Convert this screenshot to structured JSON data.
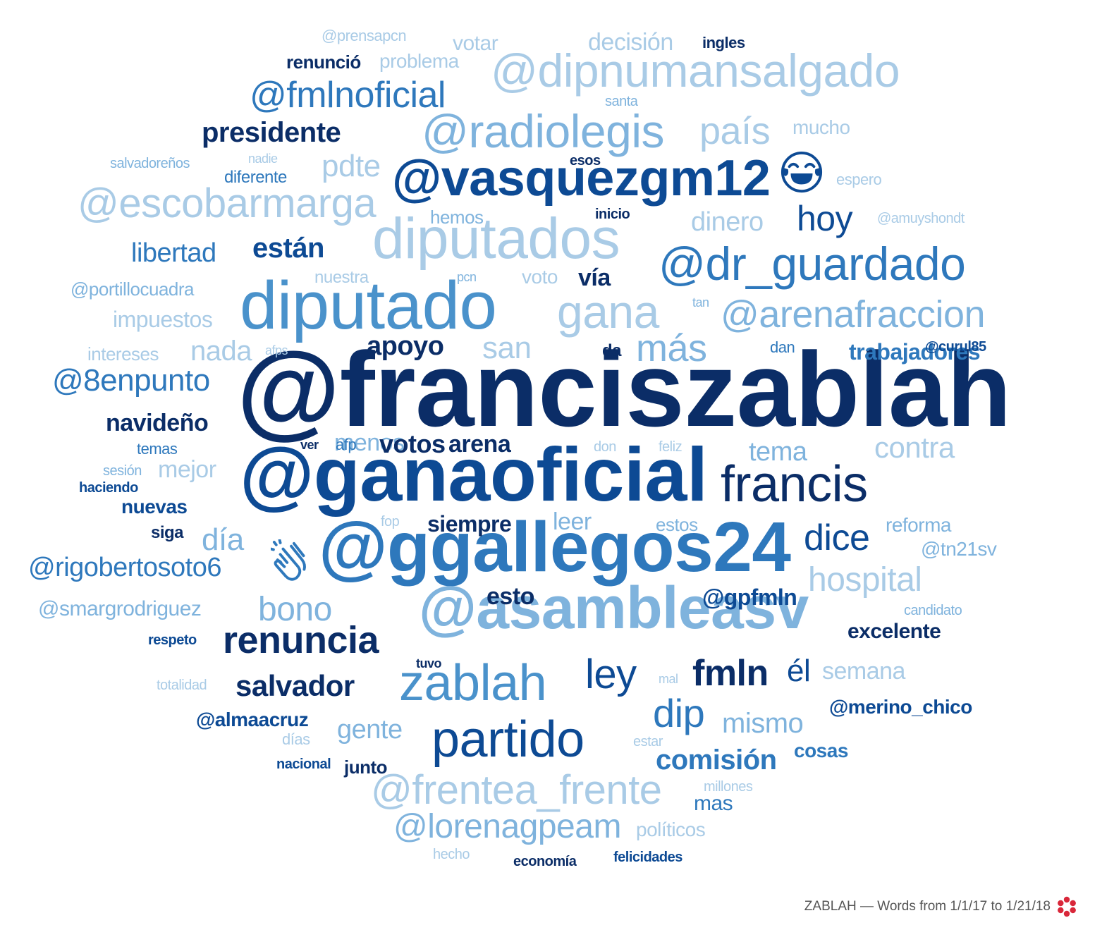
{
  "footer": {
    "caption": "ZABLAH — Words from 1/1/17 to 1/21/18",
    "logo_icon": "red-flower-logo-icon",
    "logo_color": "#d9273a"
  },
  "palette": {
    "navy": "#0b2d67",
    "dark_blue": "#0d4a94",
    "blue": "#2e78bc",
    "mid_blue": "#4a92cb",
    "light_blue": "#7fb3dd",
    "pale_blue": "#a9cbe6"
  },
  "words": [
    {
      "text": "@franciszablah",
      "color": "navy",
      "weight": "bold"
    },
    {
      "text": "@ganaoficial",
      "color": "dark_blue",
      "weight": "bold"
    },
    {
      "text": "@ggallegos24",
      "color": "blue",
      "weight": "bold"
    },
    {
      "text": "diputado",
      "color": "mid_blue",
      "weight": "normal"
    },
    {
      "text": "@asambleasv",
      "color": "light_blue",
      "weight": "bold"
    },
    {
      "text": "diputados",
      "color": "pale_blue",
      "weight": "normal"
    },
    {
      "text": "@vasquezgm12",
      "color": "dark_blue",
      "weight": "bold"
    },
    {
      "text": "@dipnumansalgado",
      "color": "pale_blue",
      "weight": "normal"
    },
    {
      "text": "zablah",
      "color": "mid_blue",
      "weight": "normal"
    },
    {
      "text": "francis",
      "color": "navy",
      "weight": "normal"
    },
    {
      "text": "@dr_guardado",
      "color": "blue",
      "weight": "normal"
    },
    {
      "text": "partido",
      "color": "dark_blue",
      "weight": "normal"
    },
    {
      "text": "@radiolegis",
      "color": "light_blue",
      "weight": "normal"
    },
    {
      "text": "gana",
      "color": "pale_blue",
      "weight": "normal"
    },
    {
      "text": "@frentea_frente",
      "color": "pale_blue",
      "weight": "normal"
    },
    {
      "text": "@escobarmarga",
      "color": "pale_blue",
      "weight": "normal"
    },
    {
      "text": "@arenafraccion",
      "color": "light_blue",
      "weight": "normal"
    },
    {
      "text": "@fmlnoficial",
      "color": "blue",
      "weight": "normal"
    },
    {
      "text": "renuncia",
      "color": "navy",
      "weight": "bold"
    },
    {
      "text": "país",
      "color": "pale_blue",
      "weight": "normal"
    },
    {
      "text": "más",
      "color": "light_blue",
      "weight": "normal"
    },
    {
      "text": "ley",
      "color": "dark_blue",
      "weight": "normal"
    },
    {
      "text": "fmln",
      "color": "navy",
      "weight": "bold"
    },
    {
      "text": "dice",
      "color": "dark_blue",
      "weight": "normal"
    },
    {
      "text": "@lorenagpeam",
      "color": "light_blue",
      "weight": "normal"
    },
    {
      "text": "hospital",
      "color": "pale_blue",
      "weight": "normal"
    },
    {
      "text": "dip",
      "color": "blue",
      "weight": "normal"
    },
    {
      "text": "hoy",
      "color": "dark_blue",
      "weight": "normal"
    },
    {
      "text": "@8enpunto",
      "color": "blue",
      "weight": "normal"
    },
    {
      "text": "@rigobertosoto6",
      "color": "blue",
      "weight": "normal"
    },
    {
      "text": "presidente",
      "color": "navy",
      "weight": "bold"
    },
    {
      "text": "bono",
      "color": "light_blue",
      "weight": "normal"
    },
    {
      "text": "salvador",
      "color": "navy",
      "weight": "bold"
    },
    {
      "text": "pdte",
      "color": "pale_blue",
      "weight": "normal"
    },
    {
      "text": "san",
      "color": "pale_blue",
      "weight": "normal"
    },
    {
      "text": "están",
      "color": "dark_blue",
      "weight": "bold"
    },
    {
      "text": "libertad",
      "color": "blue",
      "weight": "normal"
    },
    {
      "text": "contra",
      "color": "pale_blue",
      "weight": "normal"
    },
    {
      "text": "tema",
      "color": "light_blue",
      "weight": "normal"
    },
    {
      "text": "mismo",
      "color": "light_blue",
      "weight": "normal"
    },
    {
      "text": "comisión",
      "color": "blue",
      "weight": "bold"
    },
    {
      "text": "gente",
      "color": "light_blue",
      "weight": "normal"
    },
    {
      "text": "nada",
      "color": "pale_blue",
      "weight": "normal"
    },
    {
      "text": "día",
      "color": "light_blue",
      "weight": "normal"
    },
    {
      "text": "él",
      "color": "dark_blue",
      "weight": "normal"
    },
    {
      "text": "dinero",
      "color": "pale_blue",
      "weight": "normal"
    },
    {
      "text": "mejor",
      "color": "pale_blue",
      "weight": "normal"
    },
    {
      "text": "@smargrodriguez",
      "color": "light_blue",
      "weight": "normal"
    },
    {
      "text": "apoyo",
      "color": "navy",
      "weight": "bold"
    },
    {
      "text": "navideño",
      "color": "navy",
      "weight": "bold"
    },
    {
      "text": "arena",
      "color": "navy",
      "weight": "bold"
    },
    {
      "text": "menos",
      "color": "light_blue",
      "weight": "normal"
    },
    {
      "text": "leer",
      "color": "light_blue",
      "weight": "normal"
    },
    {
      "text": "votos",
      "color": "navy",
      "weight": "bold"
    },
    {
      "text": "siempre",
      "color": "navy",
      "weight": "bold"
    },
    {
      "text": "semana",
      "color": "pale_blue",
      "weight": "normal"
    },
    {
      "text": "decisión",
      "color": "pale_blue",
      "weight": "normal"
    },
    {
      "text": "votar",
      "color": "pale_blue",
      "weight": "normal"
    },
    {
      "text": "esto",
      "color": "navy",
      "weight": "bold"
    },
    {
      "text": "vía",
      "color": "navy",
      "weight": "bold"
    },
    {
      "text": "trabajadores",
      "color": "blue",
      "weight": "bold"
    },
    {
      "text": "@merino_chico",
      "color": "dark_blue",
      "weight": "bold"
    },
    {
      "text": "cosas",
      "color": "blue",
      "weight": "bold"
    },
    {
      "text": "@gpfmln",
      "color": "dark_blue",
      "weight": "bold"
    },
    {
      "text": "excelente",
      "color": "navy",
      "weight": "bold"
    },
    {
      "text": "reforma",
      "color": "light_blue",
      "weight": "normal"
    },
    {
      "text": "@tn21sv",
      "color": "light_blue",
      "weight": "normal"
    },
    {
      "text": "mucho",
      "color": "pale_blue",
      "weight": "normal"
    },
    {
      "text": "estos",
      "color": "light_blue",
      "weight": "normal"
    },
    {
      "text": "mas",
      "color": "blue",
      "weight": "normal"
    },
    {
      "text": "políticos",
      "color": "pale_blue",
      "weight": "normal"
    },
    {
      "text": "impuestos",
      "color": "pale_blue",
      "weight": "normal"
    },
    {
      "text": "@portillocuadra",
      "color": "light_blue",
      "weight": "normal"
    },
    {
      "text": "@almaacruz",
      "color": "dark_blue",
      "weight": "bold"
    },
    {
      "text": "renunció",
      "color": "navy",
      "weight": "bold"
    },
    {
      "text": "problema",
      "color": "pale_blue",
      "weight": "normal"
    },
    {
      "text": "nuevas",
      "color": "dark_blue",
      "weight": "bold"
    },
    {
      "text": "diferente",
      "color": "blue",
      "weight": "normal"
    },
    {
      "text": "hemos",
      "color": "light_blue",
      "weight": "normal"
    },
    {
      "text": "nuestra",
      "color": "pale_blue",
      "weight": "normal"
    },
    {
      "text": "voto",
      "color": "pale_blue",
      "weight": "normal"
    },
    {
      "text": "junto",
      "color": "navy",
      "weight": "bold"
    },
    {
      "text": "intereses",
      "color": "pale_blue",
      "weight": "normal"
    },
    {
      "text": "ingles",
      "color": "navy",
      "weight": "bold"
    },
    {
      "text": "@prensapcn",
      "color": "pale_blue",
      "weight": "normal"
    },
    {
      "text": "salvadoreños",
      "color": "light_blue",
      "weight": "normal"
    },
    {
      "text": "esos",
      "color": "navy",
      "weight": "bold"
    },
    {
      "text": "nadie",
      "color": "pale_blue",
      "weight": "normal"
    },
    {
      "text": "santa",
      "color": "light_blue",
      "weight": "normal"
    },
    {
      "text": "espero",
      "color": "pale_blue",
      "weight": "normal"
    },
    {
      "text": "inicio",
      "color": "navy",
      "weight": "bold"
    },
    {
      "text": "@amuyshondt",
      "color": "pale_blue",
      "weight": "normal"
    },
    {
      "text": "pcn",
      "color": "light_blue",
      "weight": "normal"
    },
    {
      "text": "tan",
      "color": "light_blue",
      "weight": "normal"
    },
    {
      "text": "afps",
      "color": "pale_blue",
      "weight": "normal"
    },
    {
      "text": "da",
      "color": "navy",
      "weight": "bold"
    },
    {
      "text": "dan",
      "color": "blue",
      "weight": "normal"
    },
    {
      "text": "@curul85",
      "color": "dark_blue",
      "weight": "bold"
    },
    {
      "text": "ver",
      "color": "navy",
      "weight": "bold"
    },
    {
      "text": "afp",
      "color": "blue",
      "weight": "normal"
    },
    {
      "text": "don",
      "color": "pale_blue",
      "weight": "normal"
    },
    {
      "text": "feliz",
      "color": "pale_blue",
      "weight": "normal"
    },
    {
      "text": "temas",
      "color": "blue",
      "weight": "normal"
    },
    {
      "text": "sesión",
      "color": "light_blue",
      "weight": "normal"
    },
    {
      "text": "haciendo",
      "color": "dark_blue",
      "weight": "bold"
    },
    {
      "text": "fop",
      "color": "pale_blue",
      "weight": "normal"
    },
    {
      "text": "siga",
      "color": "navy",
      "weight": "bold"
    },
    {
      "text": "candidato",
      "color": "light_blue",
      "weight": "normal"
    },
    {
      "text": "respeto",
      "color": "dark_blue",
      "weight": "bold"
    },
    {
      "text": "tuvo",
      "color": "navy",
      "weight": "bold"
    },
    {
      "text": "totalidad",
      "color": "pale_blue",
      "weight": "normal"
    },
    {
      "text": "mal",
      "color": "pale_blue",
      "weight": "normal"
    },
    {
      "text": "días",
      "color": "pale_blue",
      "weight": "normal"
    },
    {
      "text": "estar",
      "color": "pale_blue",
      "weight": "normal"
    },
    {
      "text": "nacional",
      "color": "dark_blue",
      "weight": "bold"
    },
    {
      "text": "millones",
      "color": "pale_blue",
      "weight": "normal"
    },
    {
      "text": "hecho",
      "color": "pale_blue",
      "weight": "normal"
    },
    {
      "text": "economía",
      "color": "navy",
      "weight": "bold"
    },
    {
      "text": "felicidades",
      "color": "dark_blue",
      "weight": "bold"
    }
  ],
  "emojis": [
    {
      "name": "face-with-tears-of-joy-icon"
    },
    {
      "name": "clapping-hands-icon"
    }
  ]
}
